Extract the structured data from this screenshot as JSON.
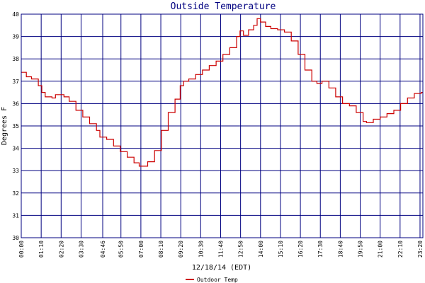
{
  "chart_data": {
    "type": "line",
    "title": "Outside Temperature",
    "xlabel": "12/18/14 (EDT)",
    "ylabel": "Degrees F",
    "ylim": [
      30,
      40
    ],
    "y_ticks": [
      "30",
      "31",
      "32",
      "33",
      "34",
      "35",
      "36",
      "37",
      "38",
      "39",
      "40"
    ],
    "x_ticks": [
      "00:00",
      "01:10",
      "02:20",
      "03:30",
      "04:46",
      "05:50",
      "07:00",
      "08:10",
      "09:20",
      "10:30",
      "11:40",
      "12:50",
      "14:00",
      "15:10",
      "16:20",
      "17:30",
      "18:40",
      "19:50",
      "21:00",
      "22:10",
      "23:20"
    ],
    "x_tick_hours": [
      0,
      1.1667,
      2.3333,
      3.5,
      4.7667,
      5.8333,
      7.0,
      8.1667,
      9.3333,
      10.5,
      11.6667,
      12.8333,
      14.0,
      15.1667,
      16.3333,
      17.5,
      18.6667,
      19.8333,
      21.0,
      22.1667,
      23.3333
    ],
    "x_range_hours": [
      0,
      23.5
    ],
    "grid": true,
    "colors": {
      "grid": "#000080",
      "line": "#cc0000",
      "title": "#000080"
    },
    "series": [
      {
        "name": "Outdoor Temp",
        "x_hours": [
          0,
          0.3,
          0.6,
          1.0,
          1.2,
          1.4,
          1.8,
          2.0,
          2.2,
          2.5,
          2.8,
          3.2,
          3.6,
          4.0,
          4.4,
          4.6,
          5.0,
          5.4,
          5.8,
          6.2,
          6.6,
          6.9,
          7.2,
          7.4,
          7.8,
          8.2,
          8.6,
          9.0,
          9.3,
          9.5,
          9.8,
          10.2,
          10.6,
          11.0,
          11.4,
          11.8,
          12.2,
          12.6,
          12.8,
          13.0,
          13.3,
          13.6,
          13.8,
          14.0,
          14.3,
          14.6,
          15.0,
          15.4,
          15.8,
          16.2,
          16.6,
          17.0,
          17.3,
          17.6,
          18.0,
          18.4,
          18.8,
          19.2,
          19.6,
          20.0,
          20.2,
          20.6,
          21.0,
          21.4,
          21.8,
          22.2,
          22.6,
          23.0,
          23.4
        ],
        "y": [
          37.4,
          37.2,
          37.1,
          36.8,
          36.5,
          36.3,
          36.25,
          36.4,
          36.4,
          36.3,
          36.1,
          35.7,
          35.4,
          35.1,
          34.8,
          34.5,
          34.4,
          34.1,
          33.85,
          33.6,
          33.35,
          33.2,
          33.2,
          33.4,
          33.9,
          34.8,
          35.6,
          36.2,
          36.8,
          37.0,
          37.1,
          37.3,
          37.5,
          37.7,
          37.9,
          38.2,
          38.5,
          39.0,
          39.25,
          39.05,
          39.3,
          39.5,
          39.8,
          39.65,
          39.45,
          39.35,
          39.3,
          39.2,
          38.8,
          38.2,
          37.5,
          37.0,
          36.9,
          37.0,
          36.7,
          36.3,
          36.0,
          35.9,
          35.6,
          35.2,
          35.15,
          35.3,
          35.4,
          35.55,
          35.7,
          36.0,
          36.25,
          36.45,
          36.5
        ]
      }
    ]
  }
}
